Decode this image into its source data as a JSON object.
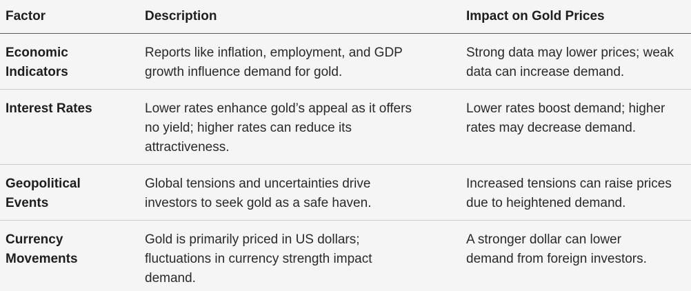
{
  "theme": {
    "background": "#f5f5f6",
    "heading_text": "#1d1e20",
    "body_text": "#29292b",
    "header_divider": "#58595c",
    "row_divider": "#c8c9cc"
  },
  "table": {
    "columns": [
      {
        "label": "Factor"
      },
      {
        "label": "Description"
      },
      {
        "label": "Impact on Gold Prices"
      }
    ],
    "rows": [
      {
        "factor": "Economic Indicators",
        "description": "Reports like inflation, employment, and GDP growth influence demand for gold.",
        "impact": "Strong data may lower prices; weak data can increase demand."
      },
      {
        "factor": "Interest Rates",
        "description": "Lower rates enhance gold’s appeal as it offers no yield; higher rates can reduce its attractiveness.",
        "impact": "Lower rates boost demand; higher rates may decrease demand."
      },
      {
        "factor": "Geopolitical Events",
        "description": "Global tensions and uncertainties drive investors to seek gold as a safe haven.",
        "impact": "Increased tensions can raise prices due to heightened demand."
      },
      {
        "factor": "Currency Movements",
        "description": "Gold is primarily priced in US dollars; fluctuations in currency strength impact demand.",
        "impact": "A stronger dollar can lower demand from foreign investors."
      }
    ]
  }
}
